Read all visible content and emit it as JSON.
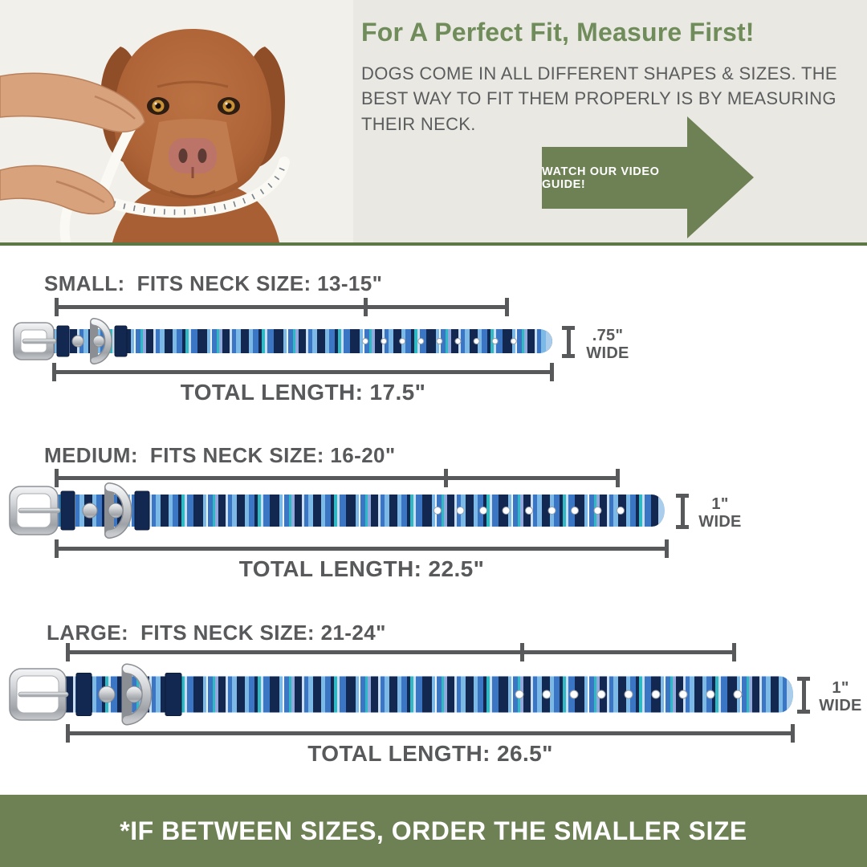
{
  "hero": {
    "title": "For A Perfect Fit, Measure First!",
    "body": "DOGS COME IN ALL DIFFERENT SHAPES & SIZES. THE BEST WAY TO FIT THEM PROPERLY IS BY MEASURING THEIR NECK.",
    "arrow_label": "WATCH OUR VIDEO GUIDE!"
  },
  "sizes": [
    {
      "name": "SMALL:",
      "fits": "FITS NECK SIZE: 13-15\"",
      "neck_range_in": "13-15",
      "total": "TOTAL LENGTH: 17.5\"",
      "total_length_in": 17.5,
      "width_value": ".75\"",
      "width_unit": "WIDE"
    },
    {
      "name": "MEDIUM:",
      "fits": "FITS NECK SIZE: 16-20\"",
      "neck_range_in": "16-20",
      "total": "TOTAL LENGTH: 22.5\"",
      "total_length_in": 22.5,
      "width_value": "1\"",
      "width_unit": "WIDE"
    },
    {
      "name": "LARGE:",
      "fits": "FITS NECK SIZE: 21-24\"",
      "neck_range_in": "21-24",
      "total": "TOTAL LENGTH: 26.5\"",
      "total_length_in": 26.5,
      "width_value": "1\"",
      "width_unit": "WIDE"
    }
  ],
  "footer": {
    "note": "*IF BETWEEN SIZES, ORDER THE SMALLER SIZE"
  },
  "palette": {
    "hero_background": "#E9E8E2",
    "heading_green": "#6F8C5A",
    "accent_green": "#6D8154",
    "divider_green": "#5D7847",
    "text_gray": "#58595B",
    "collar_navy": "#132850",
    "collar_blue": "#3B76C4",
    "collar_sky": "#7DB9E6",
    "collar_teal": "#2FB9C4",
    "collar_periwinkle": "#93A9DD",
    "collar_pale": "#C9DEF1"
  }
}
